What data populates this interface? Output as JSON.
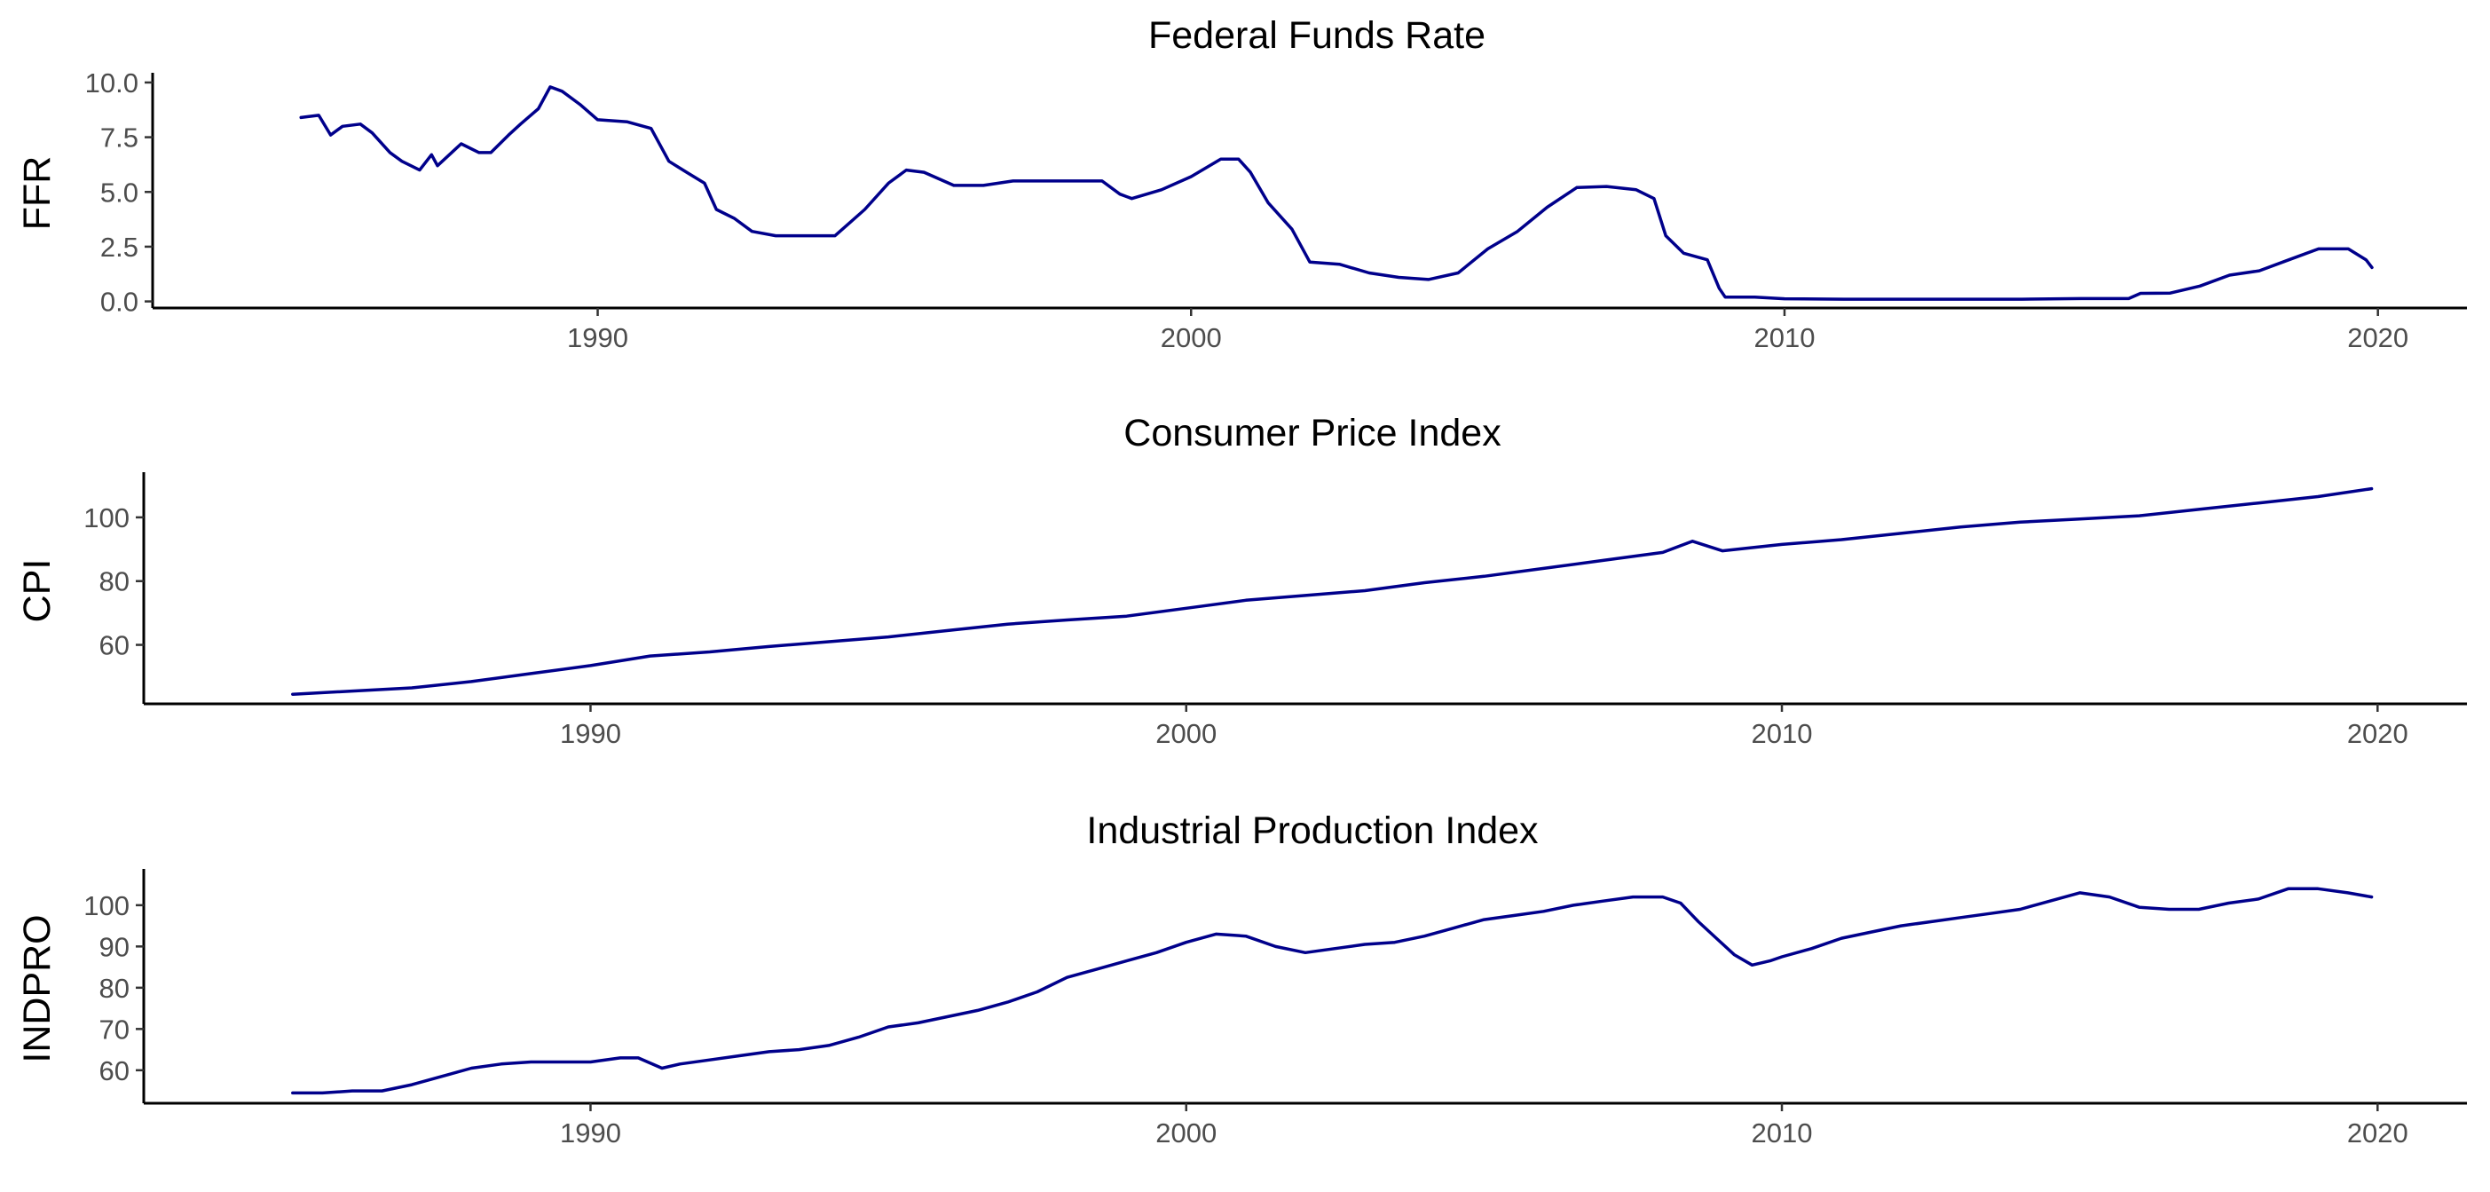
{
  "line_color": "#00008B",
  "chart_data": [
    {
      "type": "line",
      "title": "Federal Funds Rate",
      "ylabel": "FFR",
      "xlabel": "",
      "xlim": [
        1982.5,
        2021.5
      ],
      "ylim": [
        -0.3,
        10.2
      ],
      "grid": false,
      "x_ticks": [
        1990,
        2000,
        2010,
        2020
      ],
      "x_tick_labels": [
        "1990",
        "2000",
        "2010",
        "2020"
      ],
      "y_ticks": [
        0,
        2.5,
        5,
        7.5,
        10
      ],
      "y_tick_labels": [
        "0.0",
        "2.5",
        "5.0",
        "7.5",
        "10.0"
      ],
      "series": [
        {
          "x": [
            1985.0,
            1985.3,
            1985.5,
            1985.7,
            1986.0,
            1986.2,
            1986.5,
            1986.7,
            1987.0,
            1987.2,
            1987.3,
            1987.5,
            1987.7,
            1988.0,
            1988.2,
            1988.5,
            1988.7,
            1989.0,
            1989.2,
            1989.4,
            1989.7,
            1990.0,
            1990.5,
            1990.9,
            1991.2,
            1991.5,
            1991.8,
            1992.0,
            1992.3,
            1992.6,
            1993.0,
            1993.5,
            1994.0,
            1994.5,
            1994.9,
            1995.2,
            1995.5,
            1996.0,
            1996.5,
            1997.0,
            1997.5,
            1998.0,
            1998.5,
            1998.8,
            1999.0,
            1999.5,
            2000.0,
            2000.5,
            2000.8,
            2001.0,
            2001.3,
            2001.7,
            2002.0,
            2002.5,
            2003.0,
            2003.5,
            2004.0,
            2004.5,
            2005.0,
            2005.5,
            2006.0,
            2006.5,
            2007.0,
            2007.5,
            2007.8,
            2008.0,
            2008.3,
            2008.7,
            2008.9,
            2009.0,
            2009.5,
            2010.0,
            2011.0,
            2012.0,
            2013.0,
            2014.0,
            2015.0,
            2015.8,
            2016.0,
            2016.5,
            2017.0,
            2017.5,
            2018.0,
            2018.5,
            2019.0,
            2019.5,
            2019.8,
            2019.9
          ],
          "y": [
            8.4,
            8.5,
            7.6,
            8.0,
            8.1,
            7.7,
            6.8,
            6.4,
            6.0,
            6.7,
            6.2,
            6.7,
            7.2,
            6.8,
            6.8,
            7.6,
            8.1,
            8.8,
            9.8,
            9.6,
            9.0,
            8.3,
            8.2,
            7.9,
            6.4,
            5.9,
            5.4,
            4.2,
            3.8,
            3.2,
            3.0,
            3.0,
            3.0,
            4.2,
            5.4,
            6.0,
            5.9,
            5.3,
            5.3,
            5.5,
            5.5,
            5.5,
            5.5,
            4.9,
            4.7,
            5.1,
            5.7,
            6.5,
            6.5,
            5.9,
            4.5,
            3.3,
            1.8,
            1.7,
            1.3,
            1.1,
            1.0,
            1.3,
            2.4,
            3.2,
            4.3,
            5.2,
            5.25,
            5.1,
            4.7,
            3.0,
            2.2,
            1.9,
            0.6,
            0.2,
            0.2,
            0.12,
            0.1,
            0.1,
            0.1,
            0.1,
            0.13,
            0.13,
            0.37,
            0.38,
            0.7,
            1.2,
            1.4,
            1.9,
            2.4,
            2.4,
            1.9,
            1.55
          ]
        }
      ]
    },
    {
      "type": "line",
      "title": "Consumer Price Index",
      "ylabel": "CPI",
      "xlabel": "",
      "xlim": [
        1982.5,
        2021.5
      ],
      "ylim": [
        41.5,
        112.5
      ],
      "grid": false,
      "x_ticks": [
        1990,
        2000,
        2010,
        2020
      ],
      "x_tick_labels": [
        "1990",
        "2000",
        "2010",
        "2020"
      ],
      "y_ticks": [
        60,
        80,
        100
      ],
      "y_tick_labels": [
        "60",
        "80",
        "100"
      ],
      "series": [
        {
          "x": [
            1985.0,
            1986.0,
            1987.0,
            1988.0,
            1989.0,
            1990.0,
            1991.0,
            1992.0,
            1993.0,
            1994.0,
            1995.0,
            1996.0,
            1997.0,
            1998.0,
            1999.0,
            2000.0,
            2001.0,
            2002.0,
            2003.0,
            2004.0,
            2005.0,
            2006.0,
            2007.0,
            2008.0,
            2008.5,
            2009.0,
            2010.0,
            2011.0,
            2012.0,
            2013.0,
            2014.0,
            2015.0,
            2016.0,
            2017.0,
            2018.0,
            2019.0,
            2019.9
          ],
          "y": [
            44.5,
            45.5,
            46.5,
            48.5,
            51.0,
            53.5,
            56.5,
            57.8,
            59.5,
            61.0,
            62.5,
            64.5,
            66.5,
            67.8,
            69.0,
            71.5,
            74.0,
            75.5,
            77.0,
            79.5,
            81.5,
            84.0,
            86.5,
            89.0,
            92.5,
            89.5,
            91.5,
            93.0,
            95.0,
            97.0,
            98.5,
            99.5,
            100.5,
            102.5,
            104.5,
            106.5,
            109.0
          ]
        }
      ]
    },
    {
      "type": "line",
      "title": "Industrial Production Index",
      "ylabel": "INDPRO",
      "xlabel": "",
      "xlim": [
        1982.5,
        2021.5
      ],
      "ylim": [
        52,
        107.5
      ],
      "grid": false,
      "x_ticks": [
        1990,
        2000,
        2010,
        2020
      ],
      "x_tick_labels": [
        "1990",
        "2000",
        "2010",
        "2020"
      ],
      "y_ticks": [
        60,
        70,
        80,
        90,
        100
      ],
      "y_tick_labels": [
        "60",
        "70",
        "80",
        "90",
        "100"
      ],
      "series": [
        {
          "x": [
            1985.0,
            1985.5,
            1986.0,
            1986.5,
            1987.0,
            1987.5,
            1988.0,
            1988.5,
            1989.0,
            1989.5,
            1990.0,
            1990.5,
            1990.8,
            1991.2,
            1991.5,
            1992.0,
            1992.5,
            1993.0,
            1993.5,
            1994.0,
            1994.5,
            1995.0,
            1995.5,
            1996.0,
            1996.5,
            1997.0,
            1997.5,
            1998.0,
            1998.5,
            1999.0,
            1999.5,
            2000.0,
            2000.5,
            2001.0,
            2001.5,
            2002.0,
            2002.5,
            2003.0,
            2003.5,
            2004.0,
            2004.5,
            2005.0,
            2005.5,
            2006.0,
            2006.5,
            2007.0,
            2007.5,
            2008.0,
            2008.3,
            2008.6,
            2008.9,
            2009.2,
            2009.5,
            2009.8,
            2010.0,
            2010.5,
            2011.0,
            2011.5,
            2012.0,
            2012.5,
            2013.0,
            2013.5,
            2014.0,
            2014.5,
            2015.0,
            2015.5,
            2016.0,
            2016.5,
            2017.0,
            2017.5,
            2018.0,
            2018.5,
            2019.0,
            2019.5,
            2019.9
          ],
          "y": [
            54.5,
            54.5,
            55.0,
            55.0,
            56.5,
            58.5,
            60.5,
            61.5,
            62.0,
            62.0,
            62.0,
            63.0,
            63.0,
            60.5,
            61.5,
            62.5,
            63.5,
            64.5,
            65.0,
            66.0,
            68.0,
            70.5,
            71.5,
            73.0,
            74.5,
            76.5,
            79.0,
            82.5,
            84.5,
            86.5,
            88.5,
            91.0,
            93.0,
            92.5,
            90.0,
            88.5,
            89.5,
            90.5,
            91.0,
            92.5,
            94.5,
            96.5,
            97.5,
            98.5,
            100.0,
            101.0,
            102.0,
            102.0,
            100.5,
            96.0,
            92.0,
            88.0,
            85.5,
            86.5,
            87.5,
            89.5,
            92.0,
            93.5,
            95.0,
            96.0,
            97.0,
            98.0,
            99.0,
            101.0,
            103.0,
            102.0,
            99.5,
            99.0,
            99.0,
            100.5,
            101.5,
            104.0,
            104.0,
            103.0,
            102.0
          ]
        }
      ]
    }
  ]
}
